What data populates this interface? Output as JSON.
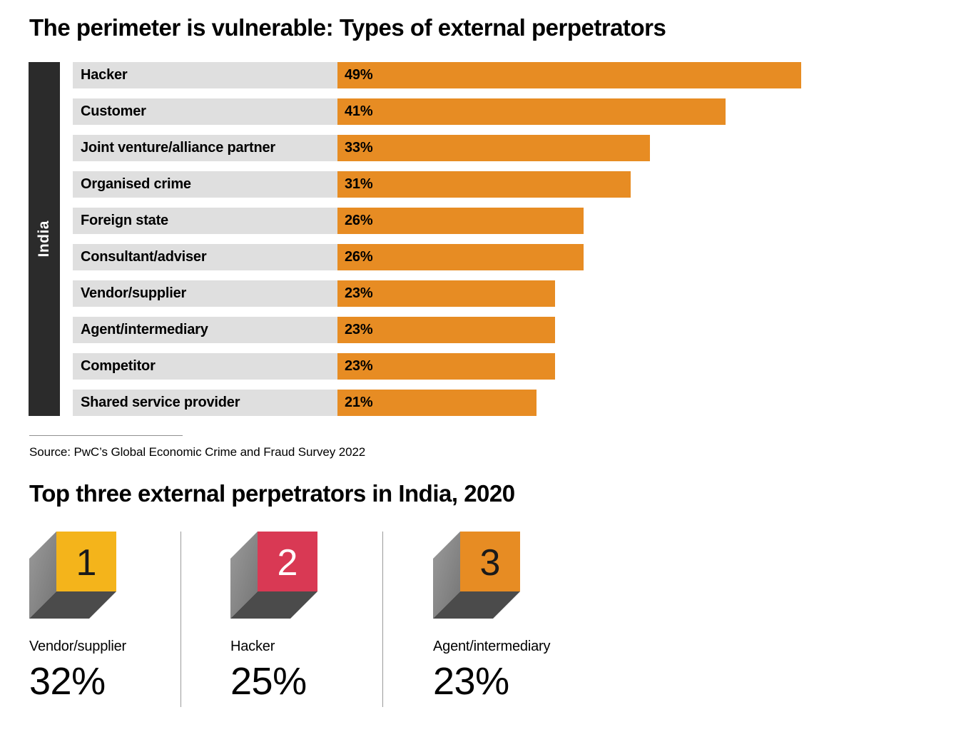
{
  "colors": {
    "bar_orange": "#E78C23",
    "label_track_grey": "#DFDFDF",
    "india_strip_dark": "#2B2B2B",
    "cube_side_grey": "#8A8A8A",
    "cube_bottom_grey": "#4B4B4B"
  },
  "chart_data": [
    {
      "type": "bar",
      "orientation": "horizontal",
      "title": "The perimeter is vulnerable: Types of external perpetrators",
      "region_label": "India",
      "categories": [
        "Hacker",
        "Customer",
        "Joint venture/alliance partner",
        "Organised crime",
        "Foreign state",
        "Consultant/adviser",
        "Vendor/supplier",
        "Agent/intermediary",
        "Competitor",
        "Shared service provider"
      ],
      "values": [
        49,
        41,
        33,
        31,
        26,
        26,
        23,
        23,
        23,
        21
      ],
      "value_suffix": "%",
      "xlim": [
        0,
        54
      ],
      "grid": false,
      "legend": false,
      "bar_color": "#E78C23",
      "source": "Source: PwC’s Global Economic Crime and Fraud Survey 2022"
    },
    {
      "type": "table",
      "title": "Top three external perpetrators in India, 2020",
      "items": [
        {
          "rank": "1",
          "label": "Vendor/supplier",
          "value": "32%",
          "face_color": "#F4B41B",
          "number_color": "#1A1A1A"
        },
        {
          "rank": "2",
          "label": "Hacker",
          "value": "25%",
          "face_color": "#D93954",
          "number_color": "#FFFFFF"
        },
        {
          "rank": "3",
          "label": "Agent/intermediary",
          "value": "23%",
          "face_color": "#E78C23",
          "number_color": "#1A1A1A"
        }
      ]
    }
  ]
}
